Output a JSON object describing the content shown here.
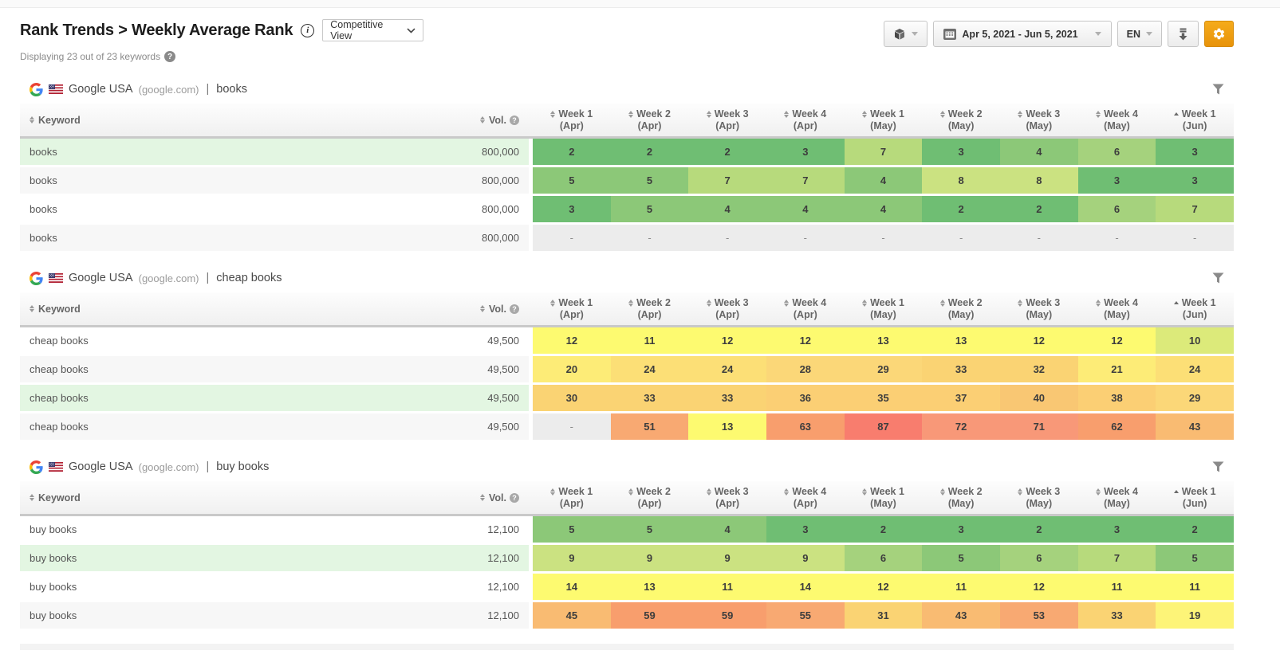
{
  "header": {
    "title": "Rank Trends > Weekly Average Rank",
    "view_selector": "Competitive View",
    "subtitle": "Displaying 23 out of 23 keywords",
    "date_range": "Apr 5, 2021 - Jun 5, 2021",
    "language": "EN"
  },
  "icons": {
    "info": "circled-i",
    "help": "circled-question-mark",
    "group": "cube",
    "calendar": "calendar-grid",
    "download": "arrow-down-lines",
    "settings": "gear",
    "filter": "funnel",
    "sort": "up-down-triangles",
    "sorted_asc": "up-triangle",
    "dropdown": "chevron-down",
    "google": "google-g-logo",
    "flag": "us-flag"
  },
  "colors": {
    "accent_orange": "#ef9d0f",
    "row_highlight": "#e3f6e2",
    "header_bar": "#c9c9c9"
  },
  "columns": {
    "keyword": "Keyword",
    "volume": "Vol.",
    "weeks": [
      {
        "label": "Week 1",
        "period": "(Apr)"
      },
      {
        "label": "Week 2",
        "period": "(Apr)"
      },
      {
        "label": "Week 3",
        "period": "(Apr)"
      },
      {
        "label": "Week 4",
        "period": "(Apr)"
      },
      {
        "label": "Week 1",
        "period": "(May)"
      },
      {
        "label": "Week 2",
        "period": "(May)"
      },
      {
        "label": "Week 3",
        "period": "(May)"
      },
      {
        "label": "Week 4",
        "period": "(May)"
      },
      {
        "label": "Week 1",
        "period": "(Jun)",
        "sorted": "asc"
      }
    ]
  },
  "heatmap": {
    "empty_color": "#ececec",
    "scale": [
      {
        "max": 3,
        "color": "#6fbe73"
      },
      {
        "max": 5,
        "color": "#8cc878"
      },
      {
        "max": 6,
        "color": "#a5d27d"
      },
      {
        "max": 7,
        "color": "#b7da7c"
      },
      {
        "max": 9,
        "color": "#cbe281"
      },
      {
        "max": 10,
        "color": "#dcea7a"
      },
      {
        "max": 15,
        "color": "#fdfa70"
      },
      {
        "max": 19,
        "color": "#fdf478"
      },
      {
        "max": 22,
        "color": "#fdec77"
      },
      {
        "max": 26,
        "color": "#fcdf76"
      },
      {
        "max": 29,
        "color": "#fbd778"
      },
      {
        "max": 34,
        "color": "#fad373"
      },
      {
        "max": 38,
        "color": "#fbcf74"
      },
      {
        "max": 41,
        "color": "#f9c773"
      },
      {
        "max": 46,
        "color": "#f9bb72"
      },
      {
        "max": 56,
        "color": "#f8a972"
      },
      {
        "max": 65,
        "color": "#f89e6d"
      },
      {
        "max": 75,
        "color": "#f89878"
      },
      {
        "max": 1000,
        "color": "#f87d6e"
      }
    ]
  },
  "tables": [
    {
      "engine": "Google USA",
      "domain": "(google.com)",
      "separator": "|",
      "keyword": "books",
      "rows": [
        {
          "keyword": "books",
          "volume": "800,000",
          "highlight": true,
          "ranks": [
            "2",
            "2",
            "2",
            "3",
            "7",
            "3",
            "4",
            "6",
            "3"
          ]
        },
        {
          "keyword": "books",
          "volume": "800,000",
          "highlight": false,
          "ranks": [
            "5",
            "5",
            "7",
            "7",
            "4",
            "8",
            "8",
            "3",
            "3"
          ]
        },
        {
          "keyword": "books",
          "volume": "800,000",
          "highlight": false,
          "ranks": [
            "3",
            "5",
            "4",
            "4",
            "4",
            "2",
            "2",
            "6",
            "7"
          ]
        },
        {
          "keyword": "books",
          "volume": "800,000",
          "highlight": false,
          "ranks": [
            "-",
            "-",
            "-",
            "-",
            "-",
            "-",
            "-",
            "-",
            "-"
          ]
        }
      ]
    },
    {
      "engine": "Google USA",
      "domain": "(google.com)",
      "separator": "|",
      "keyword": "cheap books",
      "rows": [
        {
          "keyword": "cheap books",
          "volume": "49,500",
          "highlight": false,
          "ranks": [
            "12",
            "11",
            "12",
            "12",
            "13",
            "13",
            "12",
            "12",
            "10"
          ]
        },
        {
          "keyword": "cheap books",
          "volume": "49,500",
          "highlight": false,
          "ranks": [
            "20",
            "24",
            "24",
            "28",
            "29",
            "33",
            "32",
            "21",
            "24"
          ]
        },
        {
          "keyword": "cheap books",
          "volume": "49,500",
          "highlight": true,
          "ranks": [
            "30",
            "33",
            "33",
            "36",
            "35",
            "37",
            "40",
            "38",
            "29"
          ]
        },
        {
          "keyword": "cheap books",
          "volume": "49,500",
          "highlight": false,
          "ranks": [
            "-",
            "51",
            "13",
            "63",
            "87",
            "72",
            "71",
            "62",
            "43"
          ]
        }
      ]
    },
    {
      "engine": "Google USA",
      "domain": "(google.com)",
      "separator": "|",
      "keyword": "buy books",
      "rows": [
        {
          "keyword": "buy books",
          "volume": "12,100",
          "highlight": false,
          "ranks": [
            "5",
            "5",
            "4",
            "3",
            "2",
            "3",
            "2",
            "3",
            "2"
          ]
        },
        {
          "keyword": "buy books",
          "volume": "12,100",
          "highlight": true,
          "ranks": [
            "9",
            "9",
            "9",
            "9",
            "6",
            "5",
            "6",
            "7",
            "5"
          ]
        },
        {
          "keyword": "buy books",
          "volume": "12,100",
          "highlight": false,
          "ranks": [
            "14",
            "13",
            "11",
            "14",
            "12",
            "11",
            "12",
            "11",
            "11"
          ]
        },
        {
          "keyword": "buy books",
          "volume": "12,100",
          "highlight": false,
          "ranks": [
            "45",
            "59",
            "59",
            "55",
            "31",
            "43",
            "53",
            "33",
            "19"
          ]
        }
      ]
    }
  ]
}
